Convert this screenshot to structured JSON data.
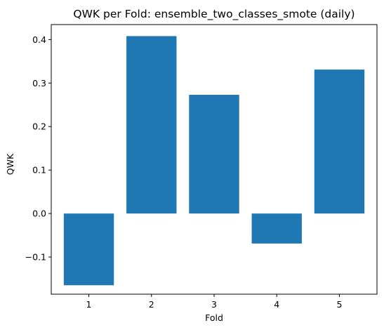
{
  "chart_data": {
    "type": "bar",
    "title": "QWK per Fold: ensemble_two_classes_smote (daily)",
    "xlabel": "Fold",
    "ylabel": "QWK",
    "categories": [
      "1",
      "2",
      "3",
      "4",
      "5"
    ],
    "values": [
      -0.165,
      0.408,
      0.273,
      -0.069,
      0.331
    ],
    "ylim": [
      -0.1855,
      0.4345
    ],
    "yticks": [
      -0.1,
      0.0,
      0.1,
      0.2,
      0.3,
      0.4
    ],
    "ytick_labels": [
      "−0.1",
      "0.0",
      "0.1",
      "0.2",
      "0.3",
      "0.4"
    ],
    "bar_color": "#1f77b4",
    "grid": false,
    "legend": "none"
  }
}
